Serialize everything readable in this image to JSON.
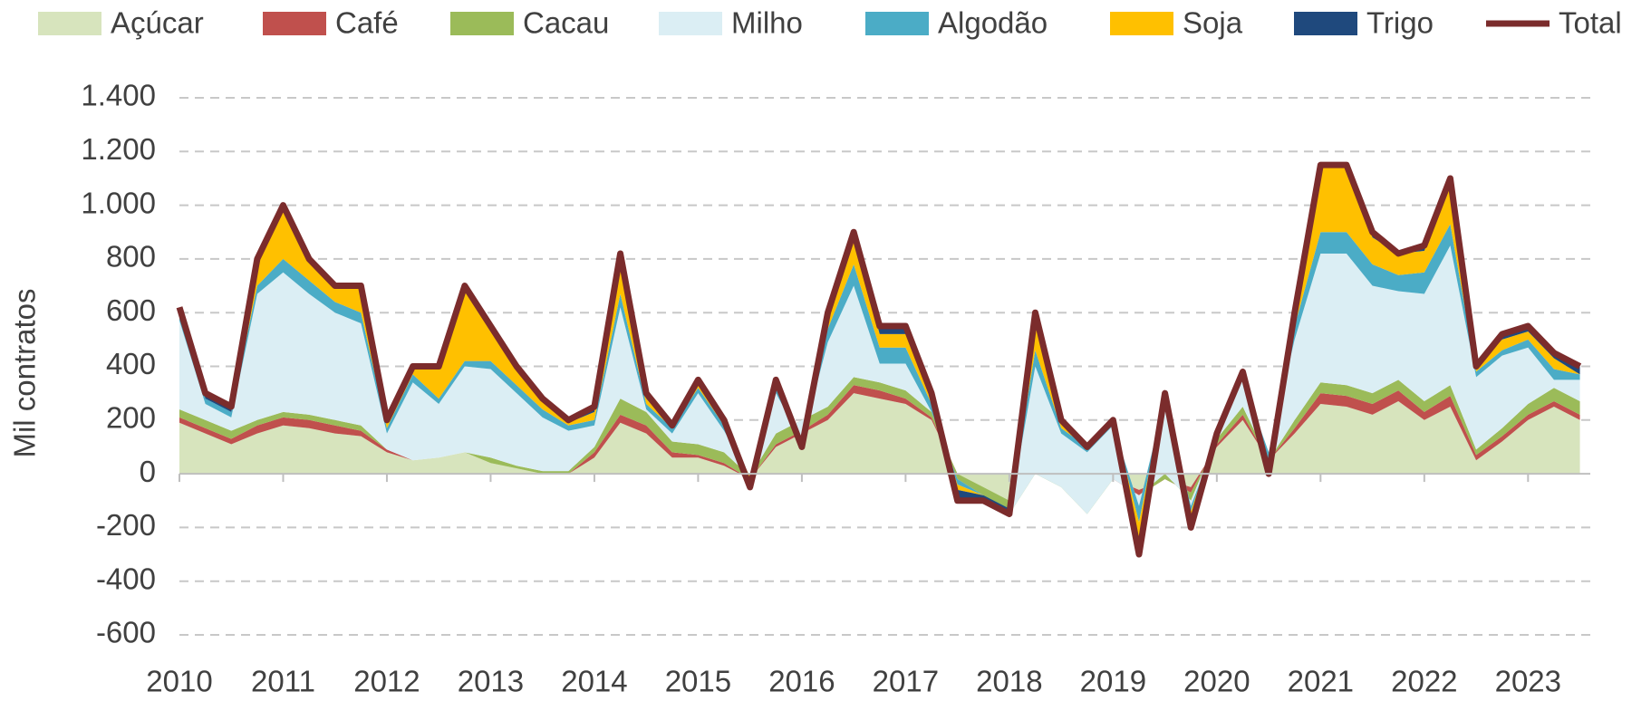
{
  "chart_data": {
    "type": "stacked_area_line",
    "y_label": "Mil contratos",
    "x": [
      2010,
      2010.25,
      2010.5,
      2010.75,
      2011,
      2011.25,
      2011.5,
      2011.75,
      2012,
      2012.25,
      2012.5,
      2012.75,
      2013,
      2013.25,
      2013.5,
      2013.75,
      2014,
      2014.25,
      2014.5,
      2014.75,
      2015,
      2015.25,
      2015.5,
      2015.75,
      2016,
      2016.25,
      2016.5,
      2016.75,
      2017,
      2017.25,
      2017.5,
      2017.75,
      2018,
      2018.25,
      2018.5,
      2018.75,
      2019,
      2019.25,
      2019.5,
      2019.75,
      2020,
      2020.25,
      2020.5,
      2020.75,
      2021,
      2021.25,
      2021.5,
      2021.75,
      2022,
      2022.25,
      2022.5,
      2022.75,
      2023,
      2023.25,
      2023.5
    ],
    "series": [
      {
        "name": "Açúcar",
        "color": "#d7e4bd",
        "values": [
          190,
          150,
          110,
          150,
          180,
          170,
          150,
          140,
          80,
          50,
          60,
          80,
          40,
          20,
          0,
          0,
          60,
          190,
          150,
          60,
          60,
          30,
          -20,
          100,
          150,
          200,
          300,
          280,
          260,
          200,
          0,
          -50,
          -100,
          0,
          -30,
          -100,
          -20,
          -60,
          -20,
          -50,
          100,
          200,
          50,
          150,
          260,
          250,
          220,
          270,
          200,
          250,
          50,
          120,
          200,
          250,
          200
        ]
      },
      {
        "name": "Café",
        "color": "#c0504d",
        "values": [
          20,
          20,
          20,
          30,
          30,
          30,
          30,
          20,
          10,
          0,
          0,
          0,
          0,
          0,
          0,
          0,
          20,
          30,
          30,
          20,
          10,
          10,
          0,
          10,
          10,
          20,
          30,
          30,
          20,
          10,
          0,
          0,
          0,
          0,
          0,
          0,
          0,
          -20,
          0,
          -20,
          10,
          20,
          0,
          20,
          40,
          40,
          40,
          40,
          30,
          40,
          20,
          20,
          20,
          20,
          20
        ]
      },
      {
        "name": "Cacau",
        "color": "#9bbb59",
        "values": [
          30,
          30,
          30,
          20,
          20,
          20,
          20,
          20,
          0,
          0,
          0,
          0,
          20,
          10,
          10,
          10,
          20,
          60,
          50,
          40,
          40,
          40,
          10,
          40,
          40,
          30,
          30,
          30,
          30,
          20,
          -20,
          -30,
          -50,
          0,
          -20,
          -50,
          0,
          0,
          20,
          -30,
          20,
          30,
          0,
          30,
          40,
          40,
          40,
          40,
          40,
          40,
          20,
          30,
          40,
          50,
          50
        ]
      },
      {
        "name": "Milho",
        "color": "#dbeef4",
        "values": [
          330,
          60,
          50,
          470,
          520,
          450,
          400,
          380,
          60,
          290,
          200,
          320,
          330,
          270,
          200,
          150,
          80,
          340,
          10,
          30,
          190,
          80,
          0,
          150,
          -80,
          240,
          340,
          70,
          100,
          0,
          0,
          0,
          0,
          400,
          200,
          230,
          200,
          -40,
          280,
          -20,
          0,
          100,
          30,
          300,
          480,
          490,
          400,
          330,
          400,
          520,
          270,
          270,
          210,
          30,
          80
        ]
      },
      {
        "name": "Algodão",
        "color": "#4bacc6",
        "values": [
          30,
          20,
          20,
          30,
          50,
          50,
          40,
          40,
          20,
          30,
          20,
          20,
          30,
          30,
          30,
          20,
          20,
          50,
          20,
          20,
          20,
          20,
          0,
          20,
          10,
          50,
          80,
          60,
          60,
          30,
          -20,
          0,
          20,
          60,
          20,
          20,
          20,
          -60,
          20,
          -20,
          20,
          30,
          -60,
          50,
          80,
          80,
          80,
          60,
          80,
          80,
          20,
          20,
          30,
          40,
          20
        ]
      },
      {
        "name": "Soja",
        "color": "#ffc000",
        "values": [
          20,
          0,
          0,
          100,
          200,
          80,
          60,
          100,
          20,
          30,
          120,
          280,
          130,
          60,
          30,
          10,
          30,
          150,
          20,
          0,
          20,
          10,
          -20,
          20,
          -20,
          40,
          100,
          50,
          50,
          20,
          -20,
          0,
          0,
          120,
          20,
          0,
          0,
          -80,
          0,
          -40,
          0,
          0,
          -20,
          50,
          250,
          250,
          100,
          80,
          80,
          150,
          20,
          40,
          30,
          40,
          0
        ]
      },
      {
        "name": "Trigo",
        "color": "#1f497d",
        "values": [
          0,
          20,
          20,
          0,
          0,
          0,
          0,
          0,
          10,
          0,
          0,
          0,
          0,
          10,
          10,
          10,
          20,
          0,
          20,
          10,
          10,
          10,
          -20,
          10,
          -10,
          20,
          20,
          30,
          30,
          20,
          -40,
          -20,
          -20,
          20,
          10,
          0,
          0,
          -40,
          0,
          -20,
          0,
          0,
          0,
          0,
          0,
          0,
          20,
          0,
          20,
          20,
          0,
          20,
          20,
          20,
          30
        ]
      },
      {
        "name": "Total",
        "color": "#7b2c2c",
        "values": [
          620,
          300,
          250,
          800,
          1000,
          800,
          700,
          700,
          200,
          400,
          400,
          700,
          550,
          400,
          280,
          200,
          250,
          820,
          300,
          180,
          350,
          200,
          -50,
          350,
          100,
          600,
          900,
          550,
          550,
          300,
          -100,
          -100,
          -150,
          600,
          200,
          100,
          200,
          -300,
          300,
          -200,
          150,
          380,
          0,
          600,
          1150,
          1150,
          900,
          820,
          850,
          1100,
          400,
          520,
          550,
          450,
          400
        ]
      }
    ],
    "xlim": [
      2010,
      2023.6
    ],
    "xticks": [
      2010,
      2011,
      2012,
      2013,
      2014,
      2015,
      2016,
      2017,
      2018,
      2019,
      2020,
      2021,
      2022,
      2023
    ],
    "ylim": [
      -600,
      1400
    ],
    "yticks": [
      -600,
      -400,
      -200,
      0,
      200,
      400,
      600,
      800,
      {
        "value": 1000,
        "label": "1.000"
      },
      {
        "value": 1200,
        "label": "1.200"
      },
      {
        "value": 1400,
        "label": "1.400"
      }
    ],
    "grid": true
  }
}
